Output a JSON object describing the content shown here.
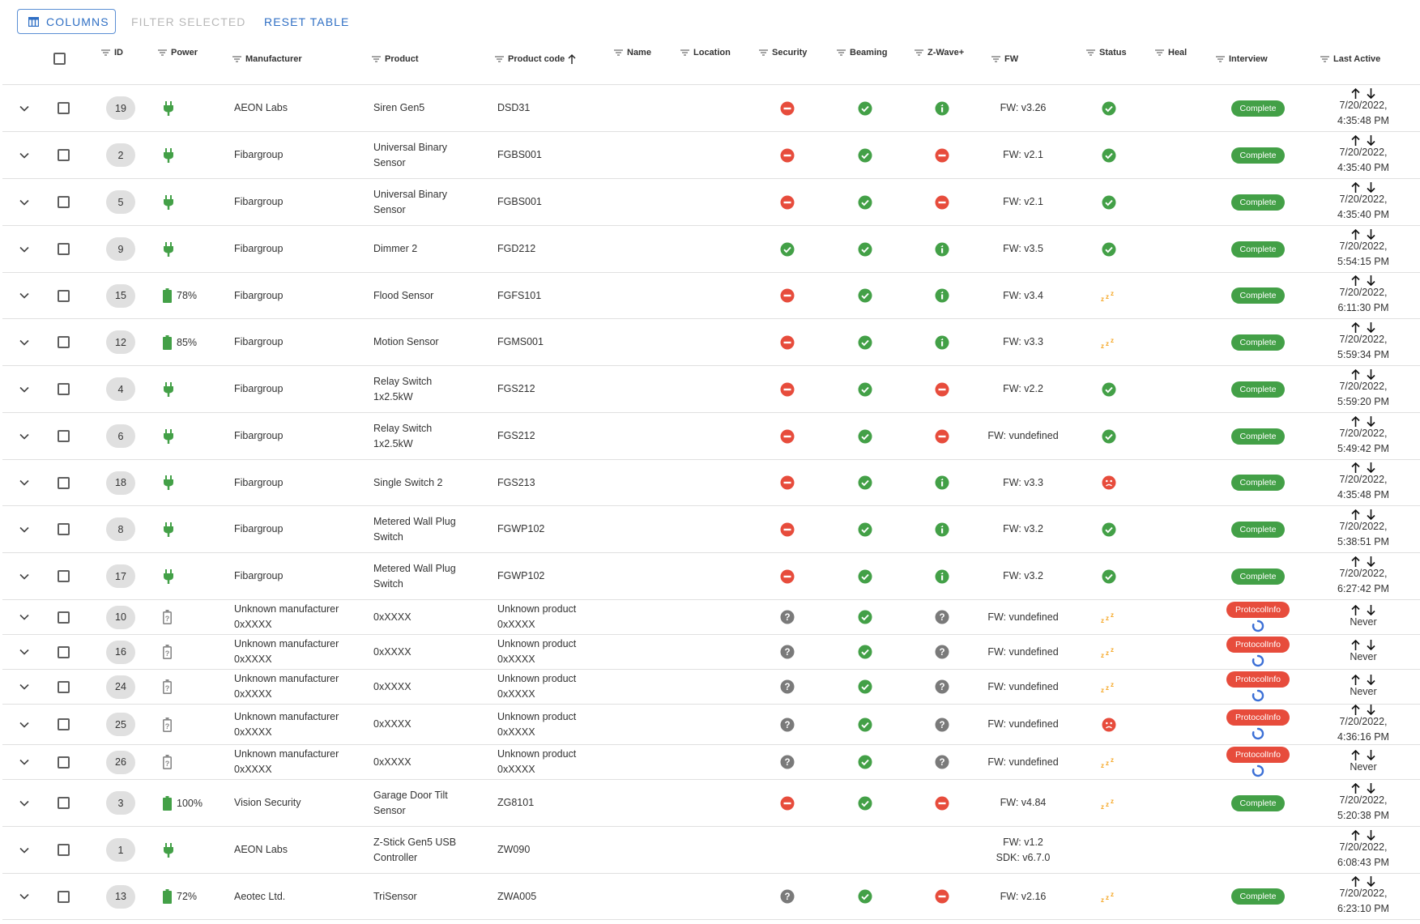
{
  "toolbar": {
    "columns_label": "Columns",
    "filter_label": "Filter selected",
    "reset_label": "Reset table"
  },
  "colors": {
    "accent": "#2f6fc4",
    "ok": "#43a047",
    "bad": "#e74c3c",
    "unknown": "#7a7a7a",
    "sleep": "#f5a623"
  },
  "columns": [
    {
      "key": "id",
      "label": "ID"
    },
    {
      "key": "power",
      "label": "Power"
    },
    {
      "key": "manufacturer",
      "label": "Manufacturer"
    },
    {
      "key": "product",
      "label": "Product"
    },
    {
      "key": "product_code",
      "label": "Product code",
      "sorted": "asc"
    },
    {
      "key": "name",
      "label": "Name"
    },
    {
      "key": "location",
      "label": "Location"
    },
    {
      "key": "security",
      "label": "Security"
    },
    {
      "key": "beaming",
      "label": "Beaming"
    },
    {
      "key": "zwave_plus",
      "label": "Z-Wave+"
    },
    {
      "key": "fw",
      "label": "FW"
    },
    {
      "key": "status",
      "label": "Status"
    },
    {
      "key": "heal",
      "label": "Heal"
    },
    {
      "key": "interview",
      "label": "Interview"
    },
    {
      "key": "last_active",
      "label": "Last Active"
    }
  ],
  "rows": [
    {
      "id": "19",
      "power": "plug",
      "battery": "",
      "manufacturer": [
        "AEON Labs"
      ],
      "product": [
        "Siren Gen5"
      ],
      "code": [
        "DSD31"
      ],
      "security": "no",
      "beaming": "yes",
      "zwave": "info",
      "fw": [
        "FW: v3.26"
      ],
      "status": "alive",
      "interview": "Complete",
      "interview_state": "ok",
      "last_active": [
        "7/20/2022,",
        "4:35:48 PM"
      ]
    },
    {
      "id": "2",
      "power": "plug",
      "battery": "",
      "manufacturer": [
        "Fibargroup"
      ],
      "product": [
        "Universal Binary",
        "Sensor"
      ],
      "code": [
        "FGBS001"
      ],
      "security": "no",
      "beaming": "yes",
      "zwave": "no",
      "fw": [
        "FW: v2.1"
      ],
      "status": "alive",
      "interview": "Complete",
      "interview_state": "ok",
      "last_active": [
        "7/20/2022,",
        "4:35:40 PM"
      ]
    },
    {
      "id": "5",
      "power": "plug",
      "battery": "",
      "manufacturer": [
        "Fibargroup"
      ],
      "product": [
        "Universal Binary",
        "Sensor"
      ],
      "code": [
        "FGBS001"
      ],
      "security": "no",
      "beaming": "yes",
      "zwave": "no",
      "fw": [
        "FW: v2.1"
      ],
      "status": "alive",
      "interview": "Complete",
      "interview_state": "ok",
      "last_active": [
        "7/20/2022,",
        "4:35:40 PM"
      ]
    },
    {
      "id": "9",
      "power": "plug",
      "battery": "",
      "manufacturer": [
        "Fibargroup"
      ],
      "product": [
        "Dimmer 2"
      ],
      "code": [
        "FGD212"
      ],
      "security": "yes",
      "beaming": "yes",
      "zwave": "info",
      "fw": [
        "FW: v3.5"
      ],
      "status": "alive",
      "interview": "Complete",
      "interview_state": "ok",
      "last_active": [
        "7/20/2022,",
        "5:54:15 PM"
      ]
    },
    {
      "id": "15",
      "power": "battery",
      "battery": "78%",
      "manufacturer": [
        "Fibargroup"
      ],
      "product": [
        "Flood Sensor"
      ],
      "code": [
        "FGFS101"
      ],
      "security": "no",
      "beaming": "yes",
      "zwave": "info",
      "fw": [
        "FW: v3.4"
      ],
      "status": "asleep",
      "interview": "Complete",
      "interview_state": "ok",
      "last_active": [
        "7/20/2022,",
        "6:11:30 PM"
      ]
    },
    {
      "id": "12",
      "power": "battery",
      "battery": "85%",
      "manufacturer": [
        "Fibargroup"
      ],
      "product": [
        "Motion Sensor"
      ],
      "code": [
        "FGMS001"
      ],
      "security": "no",
      "beaming": "yes",
      "zwave": "info",
      "fw": [
        "FW: v3.3"
      ],
      "status": "asleep",
      "interview": "Complete",
      "interview_state": "ok",
      "last_active": [
        "7/20/2022,",
        "5:59:34 PM"
      ]
    },
    {
      "id": "4",
      "power": "plug",
      "battery": "",
      "manufacturer": [
        "Fibargroup"
      ],
      "product": [
        "Relay Switch",
        "1x2.5kW"
      ],
      "code": [
        "FGS212"
      ],
      "security": "no",
      "beaming": "yes",
      "zwave": "no",
      "fw": [
        "FW: v2.2"
      ],
      "status": "alive",
      "interview": "Complete",
      "interview_state": "ok",
      "last_active": [
        "7/20/2022,",
        "5:59:20 PM"
      ]
    },
    {
      "id": "6",
      "power": "plug",
      "battery": "",
      "manufacturer": [
        "Fibargroup"
      ],
      "product": [
        "Relay Switch",
        "1x2.5kW"
      ],
      "code": [
        "FGS212"
      ],
      "security": "no",
      "beaming": "yes",
      "zwave": "no",
      "fw": [
        "FW: vundefined"
      ],
      "status": "alive",
      "interview": "Complete",
      "interview_state": "ok",
      "last_active": [
        "7/20/2022,",
        "5:49:42 PM"
      ]
    },
    {
      "id": "18",
      "power": "plug",
      "battery": "",
      "manufacturer": [
        "Fibargroup"
      ],
      "product": [
        "Single Switch 2"
      ],
      "code": [
        "FGS213"
      ],
      "security": "no",
      "beaming": "yes",
      "zwave": "info",
      "fw": [
        "FW: v3.3"
      ],
      "status": "dead",
      "interview": "Complete",
      "interview_state": "ok",
      "last_active": [
        "7/20/2022,",
        "4:35:48 PM"
      ]
    },
    {
      "id": "8",
      "power": "plug",
      "battery": "",
      "manufacturer": [
        "Fibargroup"
      ],
      "product": [
        "Metered Wall Plug",
        "Switch"
      ],
      "code": [
        "FGWP102"
      ],
      "security": "no",
      "beaming": "yes",
      "zwave": "info",
      "fw": [
        "FW: v3.2"
      ],
      "status": "alive",
      "interview": "Complete",
      "interview_state": "ok",
      "last_active": [
        "7/20/2022,",
        "5:38:51 PM"
      ]
    },
    {
      "id": "17",
      "power": "plug",
      "battery": "",
      "manufacturer": [
        "Fibargroup"
      ],
      "product": [
        "Metered Wall Plug",
        "Switch"
      ],
      "code": [
        "FGWP102"
      ],
      "security": "no",
      "beaming": "yes",
      "zwave": "info",
      "fw": [
        "FW: v3.2"
      ],
      "status": "alive",
      "interview": "Complete",
      "interview_state": "ok",
      "last_active": [
        "7/20/2022,",
        "6:27:42 PM"
      ]
    },
    {
      "id": "10",
      "power": "unknown",
      "battery": "",
      "manufacturer": [
        "Unknown manufacturer",
        "0xXXXX"
      ],
      "product": [
        "0xXXXX"
      ],
      "code": [
        "Unknown product",
        "0xXXXX"
      ],
      "security": "unknown",
      "beaming": "yes",
      "zwave": "unknown",
      "fw": [
        "FW: vundefined"
      ],
      "status": "asleep",
      "interview": "ProtocolInfo",
      "interview_state": "pending",
      "last_active": [
        "Never"
      ]
    },
    {
      "id": "16",
      "power": "unknown",
      "battery": "",
      "manufacturer": [
        "Unknown manufacturer",
        "0xXXXX"
      ],
      "product": [
        "0xXXXX"
      ],
      "code": [
        "Unknown product",
        "0xXXXX"
      ],
      "security": "unknown",
      "beaming": "yes",
      "zwave": "unknown",
      "fw": [
        "FW: vundefined"
      ],
      "status": "asleep",
      "interview": "ProtocolInfo",
      "interview_state": "pending",
      "last_active": [
        "Never"
      ]
    },
    {
      "id": "24",
      "power": "unknown",
      "battery": "",
      "manufacturer": [
        "Unknown manufacturer",
        "0xXXXX"
      ],
      "product": [
        "0xXXXX"
      ],
      "code": [
        "Unknown product",
        "0xXXXX"
      ],
      "security": "unknown",
      "beaming": "yes",
      "zwave": "unknown",
      "fw": [
        "FW: vundefined"
      ],
      "status": "asleep",
      "interview": "ProtocolInfo",
      "interview_state": "pending",
      "last_active": [
        "Never"
      ]
    },
    {
      "id": "25",
      "power": "unknown",
      "battery": "",
      "manufacturer": [
        "Unknown manufacturer",
        "0xXXXX"
      ],
      "product": [
        "0xXXXX"
      ],
      "code": [
        "Unknown product",
        "0xXXXX"
      ],
      "security": "unknown",
      "beaming": "yes",
      "zwave": "unknown",
      "fw": [
        "FW: vundefined"
      ],
      "status": "dead",
      "interview": "ProtocolInfo",
      "interview_state": "pending",
      "last_active": [
        "7/20/2022,",
        "4:36:16 PM"
      ]
    },
    {
      "id": "26",
      "power": "unknown",
      "battery": "",
      "manufacturer": [
        "Unknown manufacturer",
        "0xXXXX"
      ],
      "product": [
        "0xXXXX"
      ],
      "code": [
        "Unknown product",
        "0xXXXX"
      ],
      "security": "unknown",
      "beaming": "yes",
      "zwave": "unknown",
      "fw": [
        "FW: vundefined"
      ],
      "status": "asleep",
      "interview": "ProtocolInfo",
      "interview_state": "pending",
      "last_active": [
        "Never"
      ]
    },
    {
      "id": "3",
      "power": "battery",
      "battery": "100%",
      "manufacturer": [
        "Vision Security"
      ],
      "product": [
        "Garage Door Tilt",
        "Sensor"
      ],
      "code": [
        "ZG8101"
      ],
      "security": "no",
      "beaming": "yes",
      "zwave": "no",
      "fw": [
        "FW: v4.84"
      ],
      "status": "asleep",
      "interview": "Complete",
      "interview_state": "ok",
      "last_active": [
        "7/20/2022,",
        "5:20:38 PM"
      ]
    },
    {
      "id": "1",
      "power": "plug",
      "battery": "",
      "manufacturer": [
        "AEON Labs"
      ],
      "product": [
        "Z-Stick Gen5 USB",
        "Controller"
      ],
      "code": [
        "ZW090"
      ],
      "security": "",
      "beaming": "",
      "zwave": "",
      "fw": [
        "FW: v1.2",
        "SDK: v6.7.0"
      ],
      "status": "",
      "interview": "",
      "interview_state": "",
      "last_active": [
        "7/20/2022,",
        "6:08:43 PM"
      ]
    },
    {
      "id": "13",
      "power": "battery",
      "battery": "72%",
      "manufacturer": [
        "Aeotec Ltd."
      ],
      "product": [
        "TriSensor"
      ],
      "code": [
        "ZWA005"
      ],
      "security": "unknown",
      "beaming": "yes",
      "zwave": "no",
      "fw": [
        "FW: v2.16"
      ],
      "status": "asleep",
      "interview": "Complete",
      "interview_state": "ok",
      "last_active": [
        "7/20/2022,",
        "6:23:10 PM"
      ]
    }
  ]
}
